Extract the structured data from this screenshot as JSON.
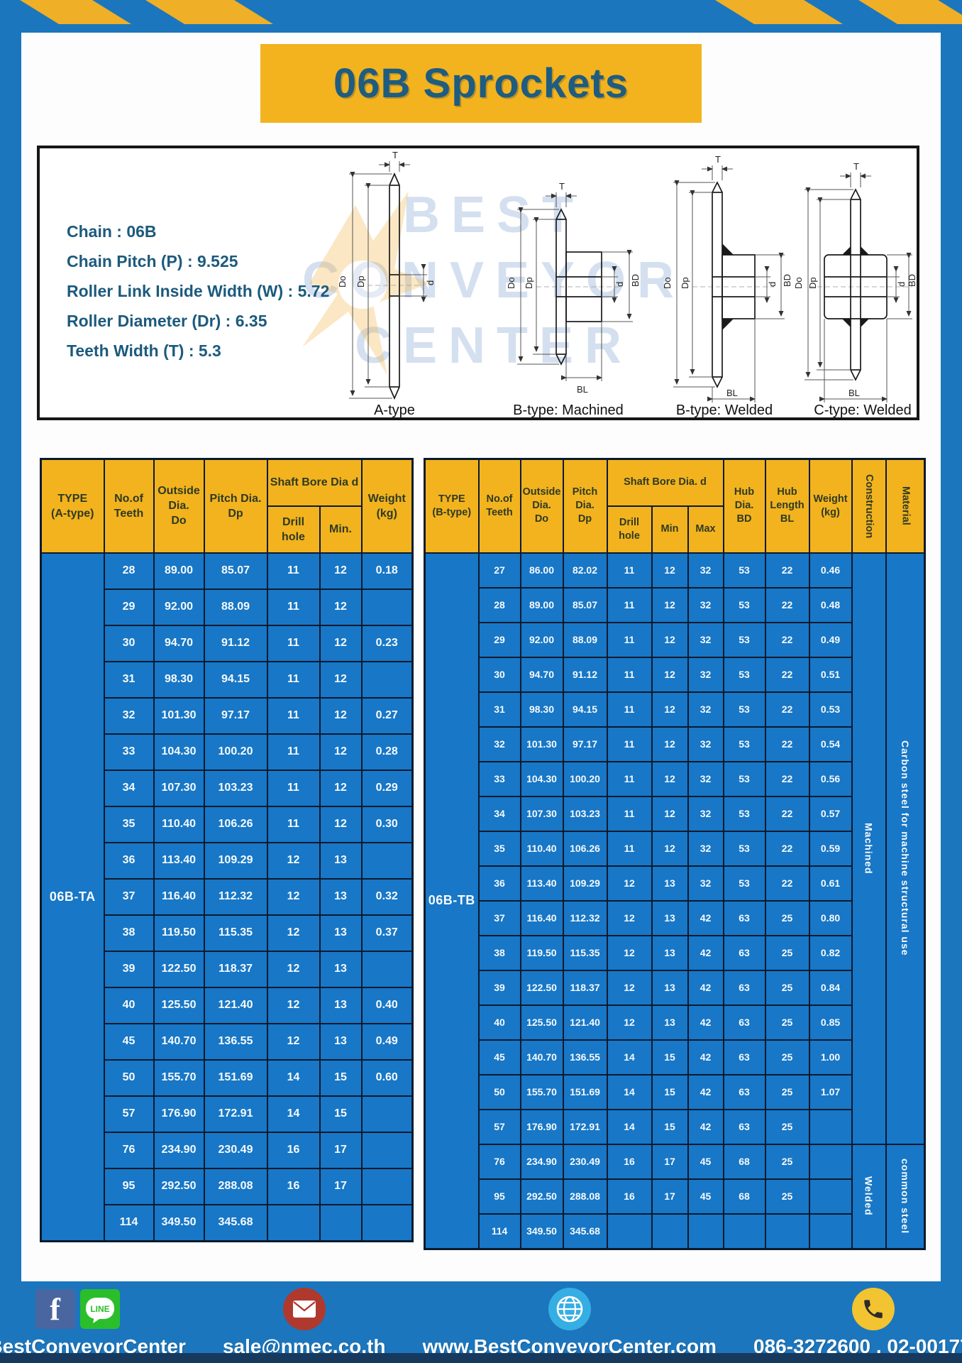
{
  "page_title": "06B Sprockets",
  "colors": {
    "frame_blue": "#1B76BD",
    "cell_blue": "#1877C6",
    "gold": "#F2B31E",
    "title_text": "#1E5C80",
    "grid_line": "#0C1A2E",
    "footer_navy": "#17395E"
  },
  "specs": {
    "lines": [
      "Chain : 06B",
      "Chain Pitch (P) : 9.525",
      "Roller Link Inside Width (W) : 5.72",
      "Roller Diameter (Dr) : 6.35",
      "Teeth Width (T) : 5.3"
    ]
  },
  "drawings": {
    "watermark_lines": [
      "BEST",
      "CONVEYOR",
      "CENTER"
    ],
    "dim_labels": [
      "T",
      "Do",
      "Dp",
      "d",
      "BD",
      "BL"
    ],
    "captions": [
      "A-type",
      "B-type: Machined",
      "B-type: Welded",
      "C-type: Welded"
    ]
  },
  "tables": {
    "left": {
      "headers": {
        "type": "TYPE\n(A-type)",
        "teeth": "No.of\nTeeth",
        "outside": "Outside\nDia.\nDo",
        "pitch": "Pitch Dia.\nDp",
        "shaft_bore": "Shaft Bore Dia d",
        "drill": "Drill hole",
        "min": "Min.",
        "weight": "Weight\n(kg)"
      },
      "type_label": "06B-TA",
      "rows": [
        [
          "28",
          "89.00",
          "85.07",
          "11",
          "12",
          "0.18"
        ],
        [
          "29",
          "92.00",
          "88.09",
          "11",
          "12",
          ""
        ],
        [
          "30",
          "94.70",
          "91.12",
          "11",
          "12",
          "0.23"
        ],
        [
          "31",
          "98.30",
          "94.15",
          "11",
          "12",
          ""
        ],
        [
          "32",
          "101.30",
          "97.17",
          "11",
          "12",
          "0.27"
        ],
        [
          "33",
          "104.30",
          "100.20",
          "11",
          "12",
          "0.28"
        ],
        [
          "34",
          "107.30",
          "103.23",
          "11",
          "12",
          "0.29"
        ],
        [
          "35",
          "110.40",
          "106.26",
          "11",
          "12",
          "0.30"
        ],
        [
          "36",
          "113.40",
          "109.29",
          "12",
          "13",
          ""
        ],
        [
          "37",
          "116.40",
          "112.32",
          "12",
          "13",
          "0.32"
        ],
        [
          "38",
          "119.50",
          "115.35",
          "12",
          "13",
          "0.37"
        ],
        [
          "39",
          "122.50",
          "118.37",
          "12",
          "13",
          ""
        ],
        [
          "40",
          "125.50",
          "121.40",
          "12",
          "13",
          "0.40"
        ],
        [
          "45",
          "140.70",
          "136.55",
          "12",
          "13",
          "0.49"
        ],
        [
          "50",
          "155.70",
          "151.69",
          "14",
          "15",
          "0.60"
        ],
        [
          "57",
          "176.90",
          "172.91",
          "14",
          "15",
          ""
        ],
        [
          "76",
          "234.90",
          "230.49",
          "16",
          "17",
          ""
        ],
        [
          "95",
          "292.50",
          "288.08",
          "16",
          "17",
          ""
        ],
        [
          "114",
          "349.50",
          "345.68",
          "",
          "",
          ""
        ]
      ]
    },
    "right": {
      "headers": {
        "type": "TYPE\n(B-type)",
        "teeth": "No.of\nTeeth",
        "outside": "Outside\nDia.\nDo",
        "pitch": "Pitch\nDia.\nDp",
        "shaft_bore": "Shaft Bore Dia. d",
        "drill": "Drill hole",
        "min": "Min",
        "max": "Max",
        "hub_dia": "Hub\nDia.\nBD",
        "hub_len": "Hub\nLength\nBL",
        "weight": "Weight\n(kg)",
        "construction": "Construction",
        "material": "Material"
      },
      "type_label": "06B-TB",
      "rows": [
        [
          "27",
          "86.00",
          "82.02",
          "11",
          "12",
          "32",
          "53",
          "22",
          "0.46"
        ],
        [
          "28",
          "89.00",
          "85.07",
          "11",
          "12",
          "32",
          "53",
          "22",
          "0.48"
        ],
        [
          "29",
          "92.00",
          "88.09",
          "11",
          "12",
          "32",
          "53",
          "22",
          "0.49"
        ],
        [
          "30",
          "94.70",
          "91.12",
          "11",
          "12",
          "32",
          "53",
          "22",
          "0.51"
        ],
        [
          "31",
          "98.30",
          "94.15",
          "11",
          "12",
          "32",
          "53",
          "22",
          "0.53"
        ],
        [
          "32",
          "101.30",
          "97.17",
          "11",
          "12",
          "32",
          "53",
          "22",
          "0.54"
        ],
        [
          "33",
          "104.30",
          "100.20",
          "11",
          "12",
          "32",
          "53",
          "22",
          "0.56"
        ],
        [
          "34",
          "107.30",
          "103.23",
          "11",
          "12",
          "32",
          "53",
          "22",
          "0.57"
        ],
        [
          "35",
          "110.40",
          "106.26",
          "11",
          "12",
          "32",
          "53",
          "22",
          "0.59"
        ],
        [
          "36",
          "113.40",
          "109.29",
          "12",
          "13",
          "32",
          "53",
          "22",
          "0.61"
        ],
        [
          "37",
          "116.40",
          "112.32",
          "12",
          "13",
          "42",
          "63",
          "25",
          "0.80"
        ],
        [
          "38",
          "119.50",
          "115.35",
          "12",
          "13",
          "42",
          "63",
          "25",
          "0.82"
        ],
        [
          "39",
          "122.50",
          "118.37",
          "12",
          "13",
          "42",
          "63",
          "25",
          "0.84"
        ],
        [
          "40",
          "125.50",
          "121.40",
          "12",
          "13",
          "42",
          "63",
          "25",
          "0.85"
        ],
        [
          "45",
          "140.70",
          "136.55",
          "14",
          "15",
          "42",
          "63",
          "25",
          "1.00"
        ],
        [
          "50",
          "155.70",
          "151.69",
          "14",
          "15",
          "42",
          "63",
          "25",
          "1.07"
        ],
        [
          "57",
          "176.90",
          "172.91",
          "14",
          "15",
          "42",
          "63",
          "25",
          ""
        ],
        [
          "76",
          "234.90",
          "230.49",
          "16",
          "17",
          "45",
          "68",
          "25",
          ""
        ],
        [
          "95",
          "292.50",
          "288.08",
          "16",
          "17",
          "45",
          "68",
          "25",
          ""
        ],
        [
          "114",
          "349.50",
          "345.68",
          "",
          "",
          "",
          "",
          "",
          ""
        ]
      ],
      "spans": [
        {
          "count": 17,
          "construction": "Machined",
          "material": "Carbon steel for machine structural use"
        },
        {
          "count": 3,
          "construction": "Welded",
          "material": "common steel"
        }
      ]
    }
  },
  "footer": {
    "items": [
      {
        "label": "@BestConveyorCenter"
      },
      {
        "label": "sale@nmec.co.th"
      },
      {
        "label": "www.BestConveyorCenter.com"
      },
      {
        "label": "086-3272600 , 02-0017766"
      }
    ]
  }
}
